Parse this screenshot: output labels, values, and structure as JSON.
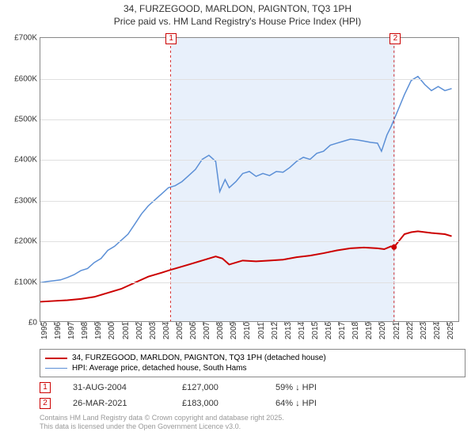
{
  "title": {
    "line1": "34, FURZEGOOD, MARLDON, PAIGNTON, TQ3 1PH",
    "line2": "Price paid vs. HM Land Registry's House Price Index (HPI)",
    "fontsize": 12,
    "color": "#333333"
  },
  "chart": {
    "type": "line",
    "background_color": "#ffffff",
    "grid_color": "#e0e0e0",
    "axis_color": "#888888",
    "x_range": [
      1995,
      2026
    ],
    "y_range": [
      0,
      700000
    ],
    "y_ticks": [
      0,
      100000,
      200000,
      300000,
      400000,
      500000,
      600000,
      700000
    ],
    "y_tick_labels": [
      "£0",
      "£100K",
      "£200K",
      "£300K",
      "£400K",
      "£500K",
      "£600K",
      "£700K"
    ],
    "x_ticks": [
      1995,
      1996,
      1997,
      1998,
      1999,
      2000,
      2001,
      2002,
      2003,
      2004,
      2005,
      2006,
      2007,
      2008,
      2009,
      2010,
      2011,
      2012,
      2013,
      2014,
      2015,
      2016,
      2017,
      2018,
      2019,
      2020,
      2021,
      2022,
      2023,
      2024,
      2025
    ],
    "tick_fontsize": 10,
    "highlight_band": {
      "x_start": 2004.66,
      "x_end": 2021.23,
      "color": "#e8f0fb"
    },
    "series": [
      {
        "name": "price_paid",
        "color": "#cc0000",
        "line_width": 2,
        "points": [
          [
            1995,
            48000
          ],
          [
            1996,
            50000
          ],
          [
            1997,
            52000
          ],
          [
            1998,
            55000
          ],
          [
            1999,
            60000
          ],
          [
            2000,
            70000
          ],
          [
            2001,
            80000
          ],
          [
            2002,
            95000
          ],
          [
            2003,
            110000
          ],
          [
            2004,
            120000
          ],
          [
            2004.66,
            127000
          ],
          [
            2005,
            130000
          ],
          [
            2006,
            140000
          ],
          [
            2007,
            150000
          ],
          [
            2008,
            160000
          ],
          [
            2008.5,
            155000
          ],
          [
            2009,
            140000
          ],
          [
            2010,
            150000
          ],
          [
            2011,
            148000
          ],
          [
            2012,
            150000
          ],
          [
            2013,
            152000
          ],
          [
            2014,
            158000
          ],
          [
            2015,
            162000
          ],
          [
            2016,
            168000
          ],
          [
            2017,
            175000
          ],
          [
            2018,
            180000
          ],
          [
            2019,
            182000
          ],
          [
            2020,
            180000
          ],
          [
            2020.5,
            178000
          ],
          [
            2021,
            185000
          ],
          [
            2021.23,
            183000
          ],
          [
            2022,
            215000
          ],
          [
            2022.5,
            220000
          ],
          [
            2023,
            222000
          ],
          [
            2024,
            218000
          ],
          [
            2025,
            215000
          ],
          [
            2025.5,
            210000
          ]
        ]
      },
      {
        "name": "hpi",
        "color": "#5b8fd6",
        "line_width": 1.5,
        "points": [
          [
            1995,
            95000
          ],
          [
            1995.5,
            98000
          ],
          [
            1996,
            100000
          ],
          [
            1996.5,
            102000
          ],
          [
            1997,
            108000
          ],
          [
            1997.5,
            115000
          ],
          [
            1998,
            125000
          ],
          [
            1998.5,
            130000
          ],
          [
            1999,
            145000
          ],
          [
            1999.5,
            155000
          ],
          [
            2000,
            175000
          ],
          [
            2000.5,
            185000
          ],
          [
            2001,
            200000
          ],
          [
            2001.5,
            215000
          ],
          [
            2002,
            240000
          ],
          [
            2002.5,
            265000
          ],
          [
            2003,
            285000
          ],
          [
            2003.5,
            300000
          ],
          [
            2004,
            315000
          ],
          [
            2004.5,
            330000
          ],
          [
            2005,
            335000
          ],
          [
            2005.5,
            345000
          ],
          [
            2006,
            360000
          ],
          [
            2006.5,
            375000
          ],
          [
            2007,
            400000
          ],
          [
            2007.5,
            410000
          ],
          [
            2008,
            395000
          ],
          [
            2008.3,
            320000
          ],
          [
            2008.7,
            350000
          ],
          [
            2009,
            330000
          ],
          [
            2009.5,
            345000
          ],
          [
            2010,
            365000
          ],
          [
            2010.5,
            370000
          ],
          [
            2011,
            358000
          ],
          [
            2011.5,
            365000
          ],
          [
            2012,
            360000
          ],
          [
            2012.5,
            370000
          ],
          [
            2013,
            368000
          ],
          [
            2013.5,
            380000
          ],
          [
            2014,
            395000
          ],
          [
            2014.5,
            405000
          ],
          [
            2015,
            400000
          ],
          [
            2015.5,
            415000
          ],
          [
            2016,
            420000
          ],
          [
            2016.5,
            435000
          ],
          [
            2017,
            440000
          ],
          [
            2017.5,
            445000
          ],
          [
            2018,
            450000
          ],
          [
            2018.5,
            448000
          ],
          [
            2019,
            445000
          ],
          [
            2019.5,
            442000
          ],
          [
            2020,
            440000
          ],
          [
            2020.3,
            420000
          ],
          [
            2020.7,
            460000
          ],
          [
            2021,
            480000
          ],
          [
            2021.5,
            520000
          ],
          [
            2022,
            560000
          ],
          [
            2022.5,
            595000
          ],
          [
            2023,
            605000
          ],
          [
            2023.5,
            585000
          ],
          [
            2024,
            570000
          ],
          [
            2024.5,
            580000
          ],
          [
            2025,
            570000
          ],
          [
            2025.5,
            575000
          ]
        ]
      }
    ],
    "sale_markers": [
      {
        "num": "1",
        "x": 2004.66,
        "y_top": -6
      },
      {
        "num": "2",
        "x": 2021.23,
        "y_top": -6
      }
    ]
  },
  "legend": {
    "border_color": "#888888",
    "fontsize": 10,
    "items": [
      {
        "color": "#cc0000",
        "width": 2,
        "label": "34, FURZEGOOD, MARLDON, PAIGNTON, TQ3 1PH (detached house)"
      },
      {
        "color": "#5b8fd6",
        "width": 1.5,
        "label": "HPI: Average price, detached house, South Hams"
      }
    ]
  },
  "sales": [
    {
      "num": "1",
      "date": "31-AUG-2004",
      "price": "£127,000",
      "delta": "59% ↓ HPI"
    },
    {
      "num": "2",
      "date": "26-MAR-2021",
      "price": "£183,000",
      "delta": "64% ↓ HPI"
    }
  ],
  "footnote": {
    "line1": "Contains HM Land Registry data © Crown copyright and database right 2025.",
    "line2": "This data is licensed under the Open Government Licence v3.0.",
    "color": "#999999",
    "fontsize": 9
  }
}
